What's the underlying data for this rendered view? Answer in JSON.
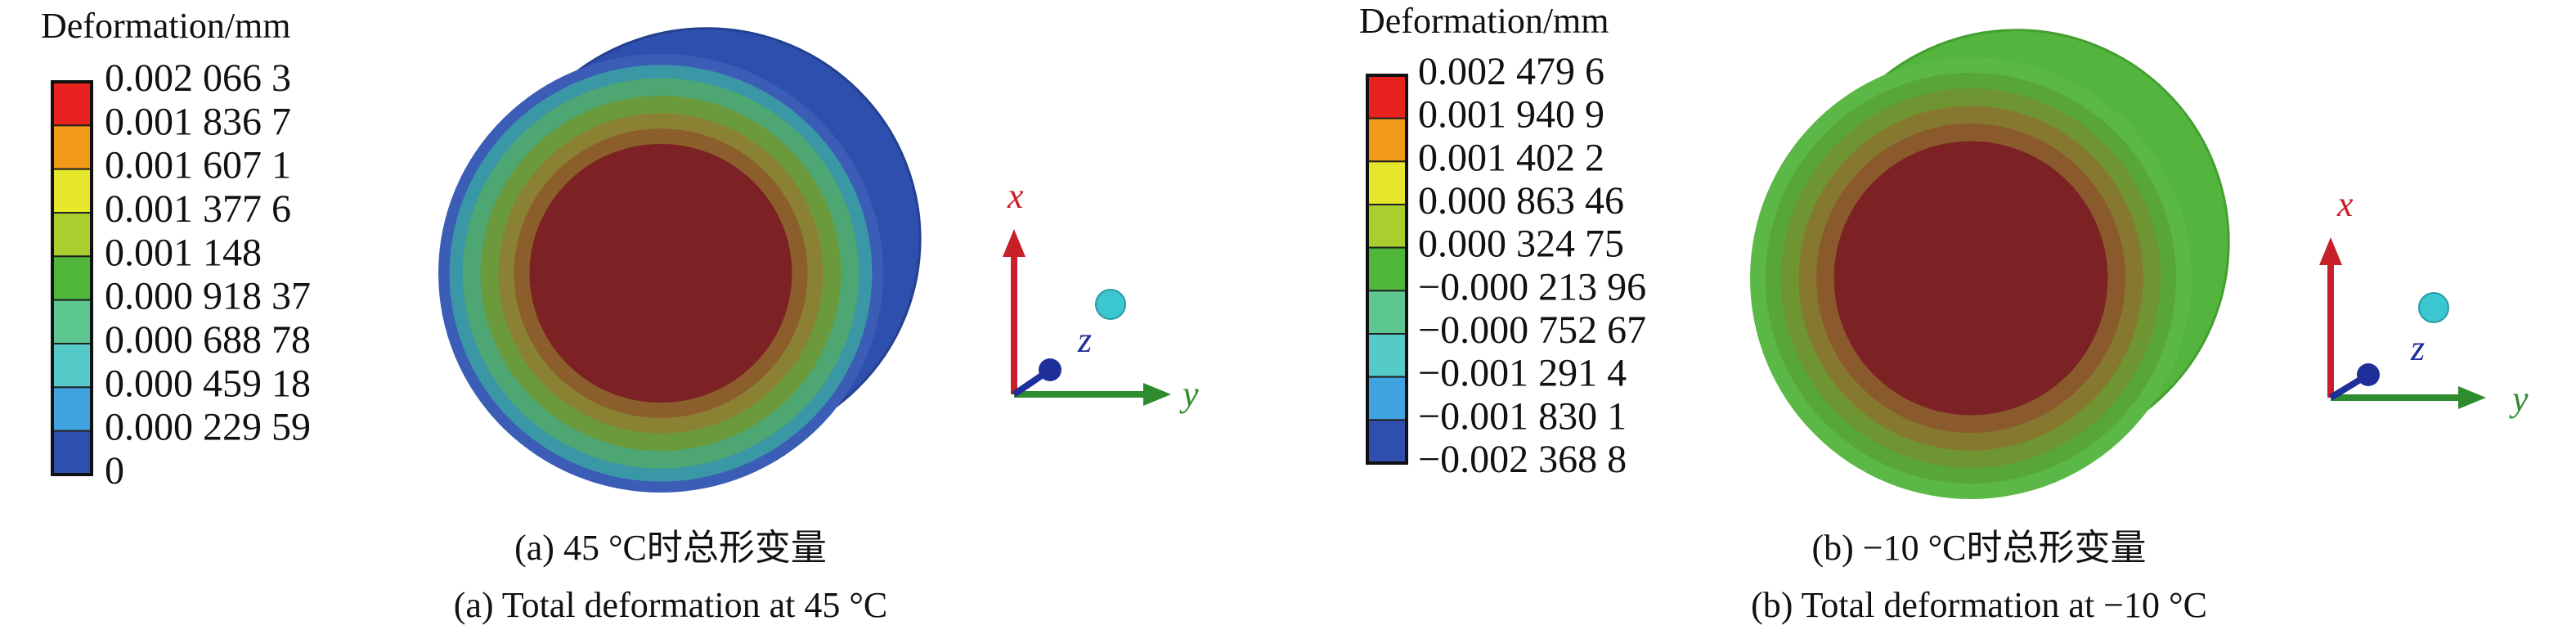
{
  "legend_colors": [
    "#e8231f",
    "#f39a1b",
    "#e6e62a",
    "#a8cf2e",
    "#4fb83a",
    "#5cc78e",
    "#56c9c9",
    "#3fa3e0",
    "#2f4fae"
  ],
  "panels": [
    {
      "legend_title": "Deformation/mm",
      "legend_labels": [
        "0.002 066 3",
        "0.001 836 7",
        "0.001 607 1",
        "0.001 377 6",
        "0.001 148",
        "0.000 918 37",
        "0.000 688 78",
        "0.000 459 18",
        "0.000 229 59",
        "0"
      ],
      "axes": {
        "x": "x",
        "y": "y",
        "z": "z"
      },
      "caption_zh": "(a) 45 °C时总形变量",
      "caption_en": "(a) Total deformation at 45 °C"
    },
    {
      "legend_title": "Deformation/mm",
      "legend_labels": [
        "0.002 479 6",
        "0.001 940 9",
        "0.001 402 2",
        "0.000 863 46",
        "0.000 324 75",
        "−0.000 213 96",
        "−0.000 752 67",
        "−0.001 291 4",
        "−0.001 830 1",
        "−0.002 368 8"
      ],
      "axes": {
        "x": "x",
        "y": "y",
        "z": "z"
      },
      "caption_zh": "(b) −10 °C时总形变量",
      "caption_en": "(b) Total deformation at −10 °C"
    }
  ]
}
